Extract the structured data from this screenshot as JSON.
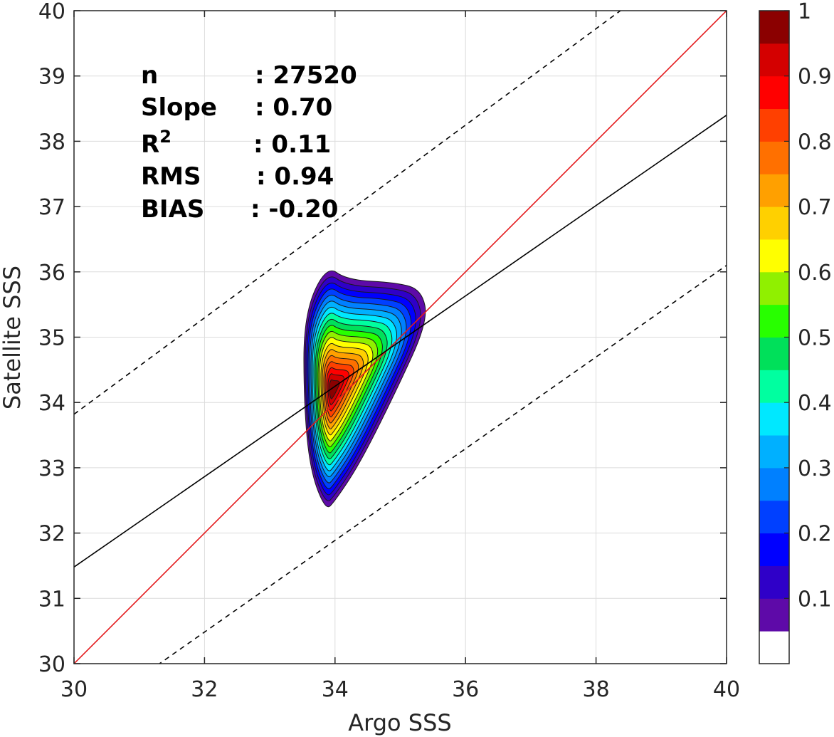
{
  "chart_data": {
    "type": "contour",
    "title": "",
    "xlabel": "Argo SSS",
    "ylabel": "Satellite SSS",
    "xlim": [
      30,
      40
    ],
    "ylim": [
      30,
      40
    ],
    "xticks": [
      "30",
      "32",
      "34",
      "36",
      "38",
      "40"
    ],
    "yticks": [
      "30",
      "31",
      "32",
      "33",
      "34",
      "35",
      "36",
      "37",
      "38",
      "39",
      "40"
    ],
    "grid": true,
    "stats": [
      {
        "label": "n",
        "sep": ":",
        "value": "27520"
      },
      {
        "label": "Slope",
        "sep": ":",
        "value": "0.70"
      },
      {
        "label": "R",
        "sup": "2",
        "sep": ":",
        "value": "0.11"
      },
      {
        "label": "RMS",
        "sep": ":",
        "value": "0.94"
      },
      {
        "label": "BIAS",
        "sep": ":",
        "value": "-0.20"
      }
    ],
    "lines": [
      {
        "id": "one-to-one",
        "color": "#e41a1c",
        "style": "solid",
        "points": [
          [
            30,
            30
          ],
          [
            40,
            40
          ]
        ]
      },
      {
        "id": "regression",
        "color": "#000000",
        "style": "solid",
        "points": [
          [
            30,
            31.48
          ],
          [
            40,
            38.4
          ]
        ]
      },
      {
        "id": "upper-bound",
        "color": "#000000",
        "style": "dashed",
        "points": [
          [
            30,
            33.82
          ],
          [
            40,
            41.2
          ]
        ]
      },
      {
        "id": "lower-bound",
        "color": "#000000",
        "style": "dashed",
        "points": [
          [
            30,
            29.08
          ],
          [
            40,
            36.1
          ]
        ]
      }
    ],
    "density": {
      "peak": [
        33.95,
        34.2
      ],
      "outer_contour": [
        [
          33.86,
          36.2
        ],
        [
          33.5,
          35.4
        ],
        [
          33.5,
          34.0
        ],
        [
          33.6,
          32.9
        ],
        [
          33.85,
          32.25
        ],
        [
          34.0,
          32.4
        ],
        [
          34.4,
          33.0
        ],
        [
          35.0,
          34.2
        ],
        [
          35.5,
          35.3
        ],
        [
          35.4,
          35.8
        ],
        [
          35.0,
          35.92
        ],
        [
          34.2,
          35.96
        ]
      ],
      "levels": [
        0.05,
        0.1,
        0.15,
        0.2,
        0.25,
        0.3,
        0.35,
        0.4,
        0.45,
        0.5,
        0.55,
        0.6,
        0.65,
        0.7,
        0.75,
        0.8,
        0.85,
        0.9,
        0.95
      ]
    },
    "colorbar": {
      "ticks": [
        "0.1",
        "0.2",
        "0.3",
        "0.4",
        "0.5",
        "0.6",
        "0.7",
        "0.8",
        "0.9",
        "1"
      ],
      "tick_values": [
        0.1,
        0.2,
        0.3,
        0.4,
        0.5,
        0.6,
        0.7,
        0.8,
        0.9,
        1.0
      ],
      "range": [
        0,
        1
      ],
      "colors": [
        "#ffffff",
        "#5e0aa8",
        "#2f00c8",
        "#0000ff",
        "#0040ff",
        "#0080ff",
        "#00b0ff",
        "#00e8ff",
        "#00ffa0",
        "#00e05a",
        "#28ff00",
        "#90f000",
        "#ffff00",
        "#ffd000",
        "#ffa000",
        "#ff7000",
        "#ff4000",
        "#ff0000",
        "#d40000",
        "#8b0000"
      ]
    }
  }
}
